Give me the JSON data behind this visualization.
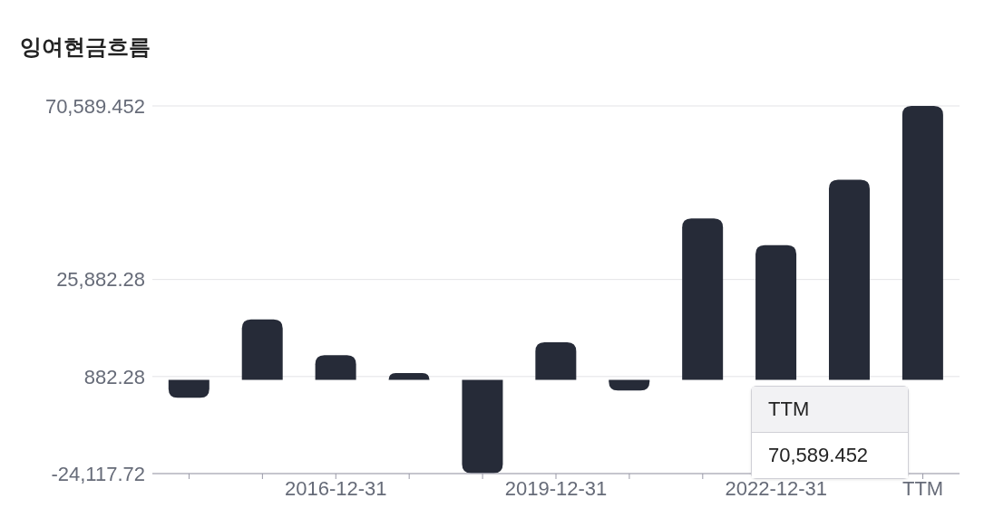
{
  "chart_data": {
    "type": "bar",
    "title": "잉여현금흐름",
    "categories": [
      null,
      null,
      "2016-12-31",
      null,
      null,
      "2019-12-31",
      null,
      null,
      "2022-12-31",
      null,
      "TTM"
    ],
    "values": [
      -4600,
      15600,
      6400,
      1800,
      -24000,
      9700,
      -2700,
      41600,
      34700,
      51600,
      70589.452
    ],
    "color": "#262b38",
    "ylim": [
      -24117.72,
      70589.452
    ],
    "yticks": [
      {
        "value": -24117.72,
        "label": "-24,117.72"
      },
      {
        "value": 882.28,
        "label": "882.28"
      },
      {
        "value": 25882.28,
        "label": "25,882.28"
      },
      {
        "value": 70589.452,
        "label": "70,589.452"
      }
    ],
    "grid": "y",
    "annotations": [
      "TTM",
      "70,589.452"
    ]
  }
}
